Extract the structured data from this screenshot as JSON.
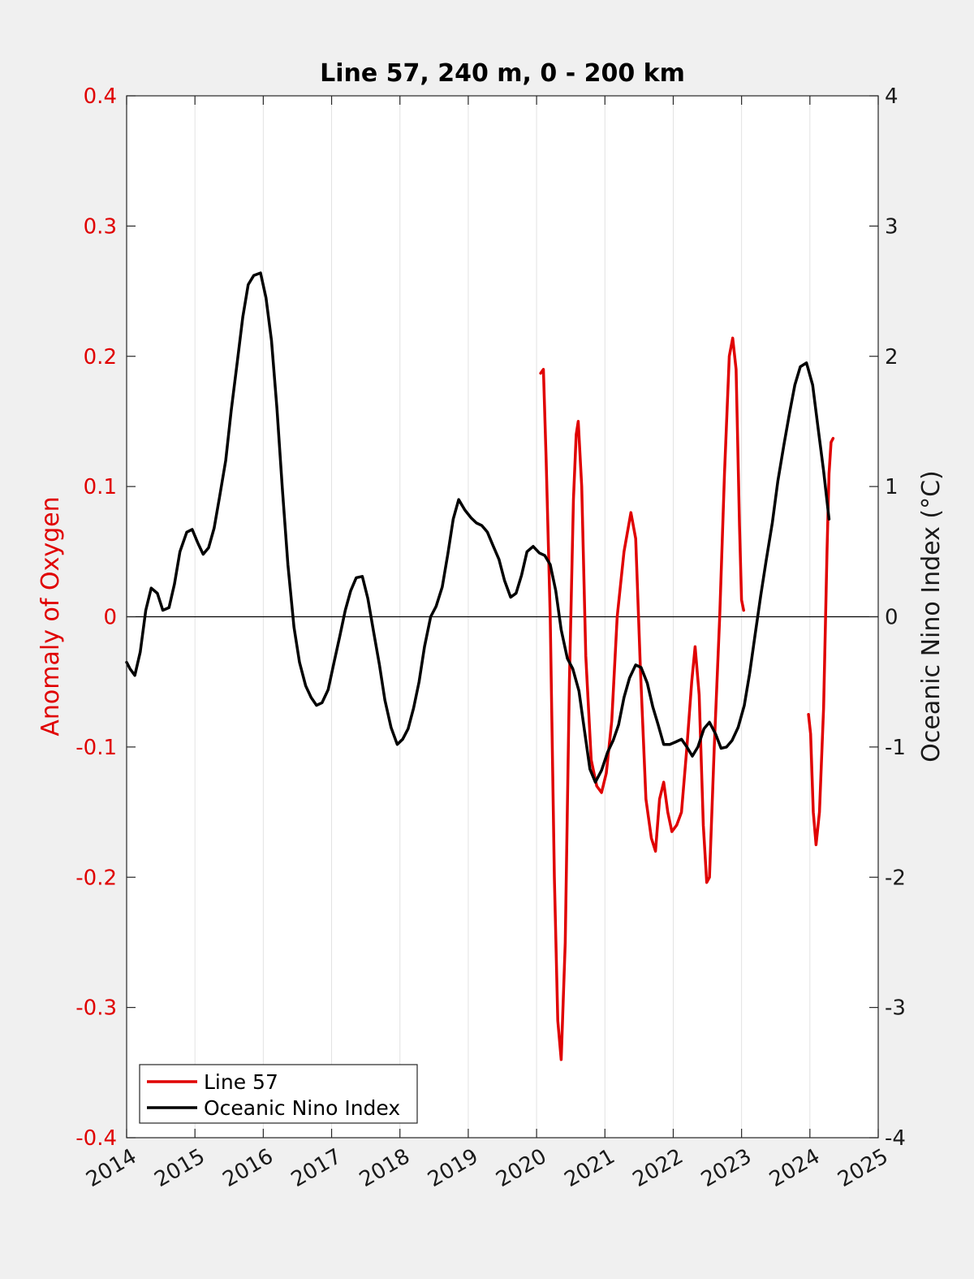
{
  "chart_data": {
    "type": "line",
    "title": "Line 57, 240 m, 0 - 200 km",
    "ylabel_left": "Anomaly of Oxygen",
    "ylabel_right": "Oceanic Nino Index (°C)",
    "xlim": [
      2014,
      2025
    ],
    "ylim_left": [
      -0.4,
      0.4
    ],
    "ylim_right": [
      -4,
      4
    ],
    "x_ticks": [
      "2014",
      "2015",
      "2016",
      "2017",
      "2018",
      "2019",
      "2020",
      "2021",
      "2022",
      "2023",
      "2024",
      "2025"
    ],
    "y_left_ticks": [
      "-0.4",
      "-0.3",
      "-0.2",
      "-0.1",
      "0",
      "0.1",
      "0.2",
      "0.3",
      "0.4"
    ],
    "y_right_ticks": [
      "-4",
      "-3",
      "-2",
      "-1",
      "0",
      "1",
      "2",
      "3",
      "4"
    ],
    "grid": "vertical",
    "zero_line": true,
    "legend_position": "bottom-left",
    "series": [
      {
        "name": "Line 57",
        "axis": "left",
        "color": "#e00000",
        "segments": [
          [
            [
              2020.06,
              0.187
            ],
            [
              2020.1,
              0.19
            ],
            [
              2020.14,
              0.12
            ],
            [
              2020.2,
              0.0
            ],
            [
              2020.26,
              -0.2
            ],
            [
              2020.31,
              -0.31
            ],
            [
              2020.36,
              -0.34
            ],
            [
              2020.42,
              -0.25
            ],
            [
              2020.48,
              -0.05
            ],
            [
              2020.54,
              0.09
            ],
            [
              2020.58,
              0.14
            ],
            [
              2020.61,
              0.15
            ],
            [
              2020.66,
              0.1
            ],
            [
              2020.72,
              -0.03
            ],
            [
              2020.8,
              -0.11
            ],
            [
              2020.88,
              -0.13
            ],
            [
              2020.95,
              -0.135
            ],
            [
              2021.02,
              -0.12
            ],
            [
              2021.1,
              -0.08
            ],
            [
              2021.18,
              0.0
            ],
            [
              2021.28,
              0.05
            ],
            [
              2021.38,
              0.08
            ],
            [
              2021.45,
              0.06
            ],
            [
              2021.52,
              -0.04
            ],
            [
              2021.6,
              -0.14
            ],
            [
              2021.68,
              -0.17
            ],
            [
              2021.74,
              -0.18
            ],
            [
              2021.8,
              -0.14
            ],
            [
              2021.86,
              -0.127
            ],
            [
              2021.92,
              -0.15
            ],
            [
              2021.98,
              -0.165
            ],
            [
              2022.05,
              -0.16
            ],
            [
              2022.12,
              -0.15
            ],
            [
              2022.2,
              -0.1
            ],
            [
              2022.27,
              -0.05
            ],
            [
              2022.32,
              -0.023
            ],
            [
              2022.38,
              -0.06
            ],
            [
              2022.44,
              -0.16
            ],
            [
              2022.49,
              -0.204
            ],
            [
              2022.53,
              -0.2
            ],
            [
              2022.6,
              -0.1
            ],
            [
              2022.68,
              0.0
            ],
            [
              2022.75,
              0.11
            ],
            [
              2022.82,
              0.2
            ],
            [
              2022.87,
              0.214
            ],
            [
              2022.92,
              0.19
            ],
            [
              2022.97,
              0.07
            ],
            [
              2023.0,
              0.013
            ],
            [
              2023.03,
              0.005
            ]
          ],
          [
            [
              2023.98,
              -0.075
            ],
            [
              2024.01,
              -0.09
            ],
            [
              2024.05,
              -0.15
            ],
            [
              2024.09,
              -0.175
            ],
            [
              2024.14,
              -0.15
            ],
            [
              2024.2,
              -0.07
            ],
            [
              2024.25,
              0.05
            ],
            [
              2024.28,
              0.11
            ],
            [
              2024.31,
              0.134
            ],
            [
              2024.34,
              0.137
            ]
          ]
        ]
      },
      {
        "name": "Oceanic Nino Index",
        "axis": "right",
        "color": "#000000",
        "segments": [
          [
            [
              2014.0,
              -0.35
            ],
            [
              2014.05,
              -0.4
            ],
            [
              2014.12,
              -0.45
            ],
            [
              2014.2,
              -0.27
            ],
            [
              2014.28,
              0.05
            ],
            [
              2014.36,
              0.22
            ],
            [
              2014.45,
              0.18
            ],
            [
              2014.53,
              0.05
            ],
            [
              2014.62,
              0.07
            ],
            [
              2014.7,
              0.25
            ],
            [
              2014.78,
              0.5
            ],
            [
              2014.88,
              0.65
            ],
            [
              2014.96,
              0.67
            ],
            [
              2015.04,
              0.57
            ],
            [
              2015.12,
              0.48
            ],
            [
              2015.2,
              0.53
            ],
            [
              2015.28,
              0.68
            ],
            [
              2015.36,
              0.92
            ],
            [
              2015.45,
              1.2
            ],
            [
              2015.53,
              1.58
            ],
            [
              2015.62,
              1.96
            ],
            [
              2015.7,
              2.3
            ],
            [
              2015.78,
              2.55
            ],
            [
              2015.86,
              2.62
            ],
            [
              2015.96,
              2.64
            ],
            [
              2016.04,
              2.45
            ],
            [
              2016.12,
              2.12
            ],
            [
              2016.2,
              1.6
            ],
            [
              2016.28,
              0.98
            ],
            [
              2016.36,
              0.4
            ],
            [
              2016.45,
              -0.08
            ],
            [
              2016.53,
              -0.35
            ],
            [
              2016.62,
              -0.53
            ],
            [
              2016.7,
              -0.62
            ],
            [
              2016.78,
              -0.68
            ],
            [
              2016.86,
              -0.66
            ],
            [
              2016.95,
              -0.56
            ],
            [
              2017.04,
              -0.34
            ],
            [
              2017.12,
              -0.15
            ],
            [
              2017.2,
              0.05
            ],
            [
              2017.28,
              0.2
            ],
            [
              2017.36,
              0.3
            ],
            [
              2017.45,
              0.31
            ],
            [
              2017.53,
              0.14
            ],
            [
              2017.62,
              -0.13
            ],
            [
              2017.7,
              -0.37
            ],
            [
              2017.78,
              -0.64
            ],
            [
              2017.87,
              -0.85
            ],
            [
              2017.96,
              -0.98
            ],
            [
              2018.04,
              -0.94
            ],
            [
              2018.12,
              -0.86
            ],
            [
              2018.2,
              -0.7
            ],
            [
              2018.28,
              -0.5
            ],
            [
              2018.36,
              -0.23
            ],
            [
              2018.45,
              0.0
            ],
            [
              2018.53,
              0.08
            ],
            [
              2018.62,
              0.23
            ],
            [
              2018.7,
              0.48
            ],
            [
              2018.78,
              0.75
            ],
            [
              2018.86,
              0.9
            ],
            [
              2018.95,
              0.82
            ],
            [
              2019.04,
              0.76
            ],
            [
              2019.12,
              0.72
            ],
            [
              2019.2,
              0.7
            ],
            [
              2019.28,
              0.65
            ],
            [
              2019.36,
              0.55
            ],
            [
              2019.45,
              0.44
            ],
            [
              2019.53,
              0.28
            ],
            [
              2019.62,
              0.15
            ],
            [
              2019.7,
              0.18
            ],
            [
              2019.78,
              0.32
            ],
            [
              2019.86,
              0.5
            ],
            [
              2019.95,
              0.54
            ],
            [
              2020.04,
              0.49
            ],
            [
              2020.12,
              0.47
            ],
            [
              2020.2,
              0.4
            ],
            [
              2020.28,
              0.2
            ],
            [
              2020.36,
              -0.1
            ],
            [
              2020.45,
              -0.32
            ],
            [
              2020.53,
              -0.4
            ],
            [
              2020.62,
              -0.57
            ],
            [
              2020.7,
              -0.87
            ],
            [
              2020.78,
              -1.17
            ],
            [
              2020.86,
              -1.27
            ],
            [
              2020.95,
              -1.18
            ],
            [
              2021.04,
              -1.04
            ],
            [
              2021.12,
              -0.95
            ],
            [
              2021.2,
              -0.83
            ],
            [
              2021.28,
              -0.62
            ],
            [
              2021.36,
              -0.47
            ],
            [
              2021.45,
              -0.37
            ],
            [
              2021.53,
              -0.39
            ],
            [
              2021.62,
              -0.51
            ],
            [
              2021.7,
              -0.69
            ],
            [
              2021.78,
              -0.83
            ],
            [
              2021.86,
              -0.98
            ],
            [
              2021.95,
              -0.98
            ],
            [
              2022.04,
              -0.96
            ],
            [
              2022.12,
              -0.94
            ],
            [
              2022.2,
              -1.0
            ],
            [
              2022.28,
              -1.07
            ],
            [
              2022.36,
              -1.0
            ],
            [
              2022.45,
              -0.86
            ],
            [
              2022.53,
              -0.81
            ],
            [
              2022.62,
              -0.9
            ],
            [
              2022.7,
              -1.01
            ],
            [
              2022.78,
              -1.0
            ],
            [
              2022.86,
              -0.95
            ],
            [
              2022.95,
              -0.85
            ],
            [
              2023.04,
              -0.68
            ],
            [
              2023.12,
              -0.43
            ],
            [
              2023.2,
              -0.13
            ],
            [
              2023.28,
              0.16
            ],
            [
              2023.36,
              0.43
            ],
            [
              2023.45,
              0.72
            ],
            [
              2023.53,
              1.04
            ],
            [
              2023.62,
              1.32
            ],
            [
              2023.7,
              1.56
            ],
            [
              2023.78,
              1.78
            ],
            [
              2023.86,
              1.92
            ],
            [
              2023.95,
              1.95
            ],
            [
              2024.04,
              1.78
            ],
            [
              2024.12,
              1.45
            ],
            [
              2024.2,
              1.12
            ],
            [
              2024.28,
              0.75
            ]
          ]
        ]
      }
    ]
  }
}
